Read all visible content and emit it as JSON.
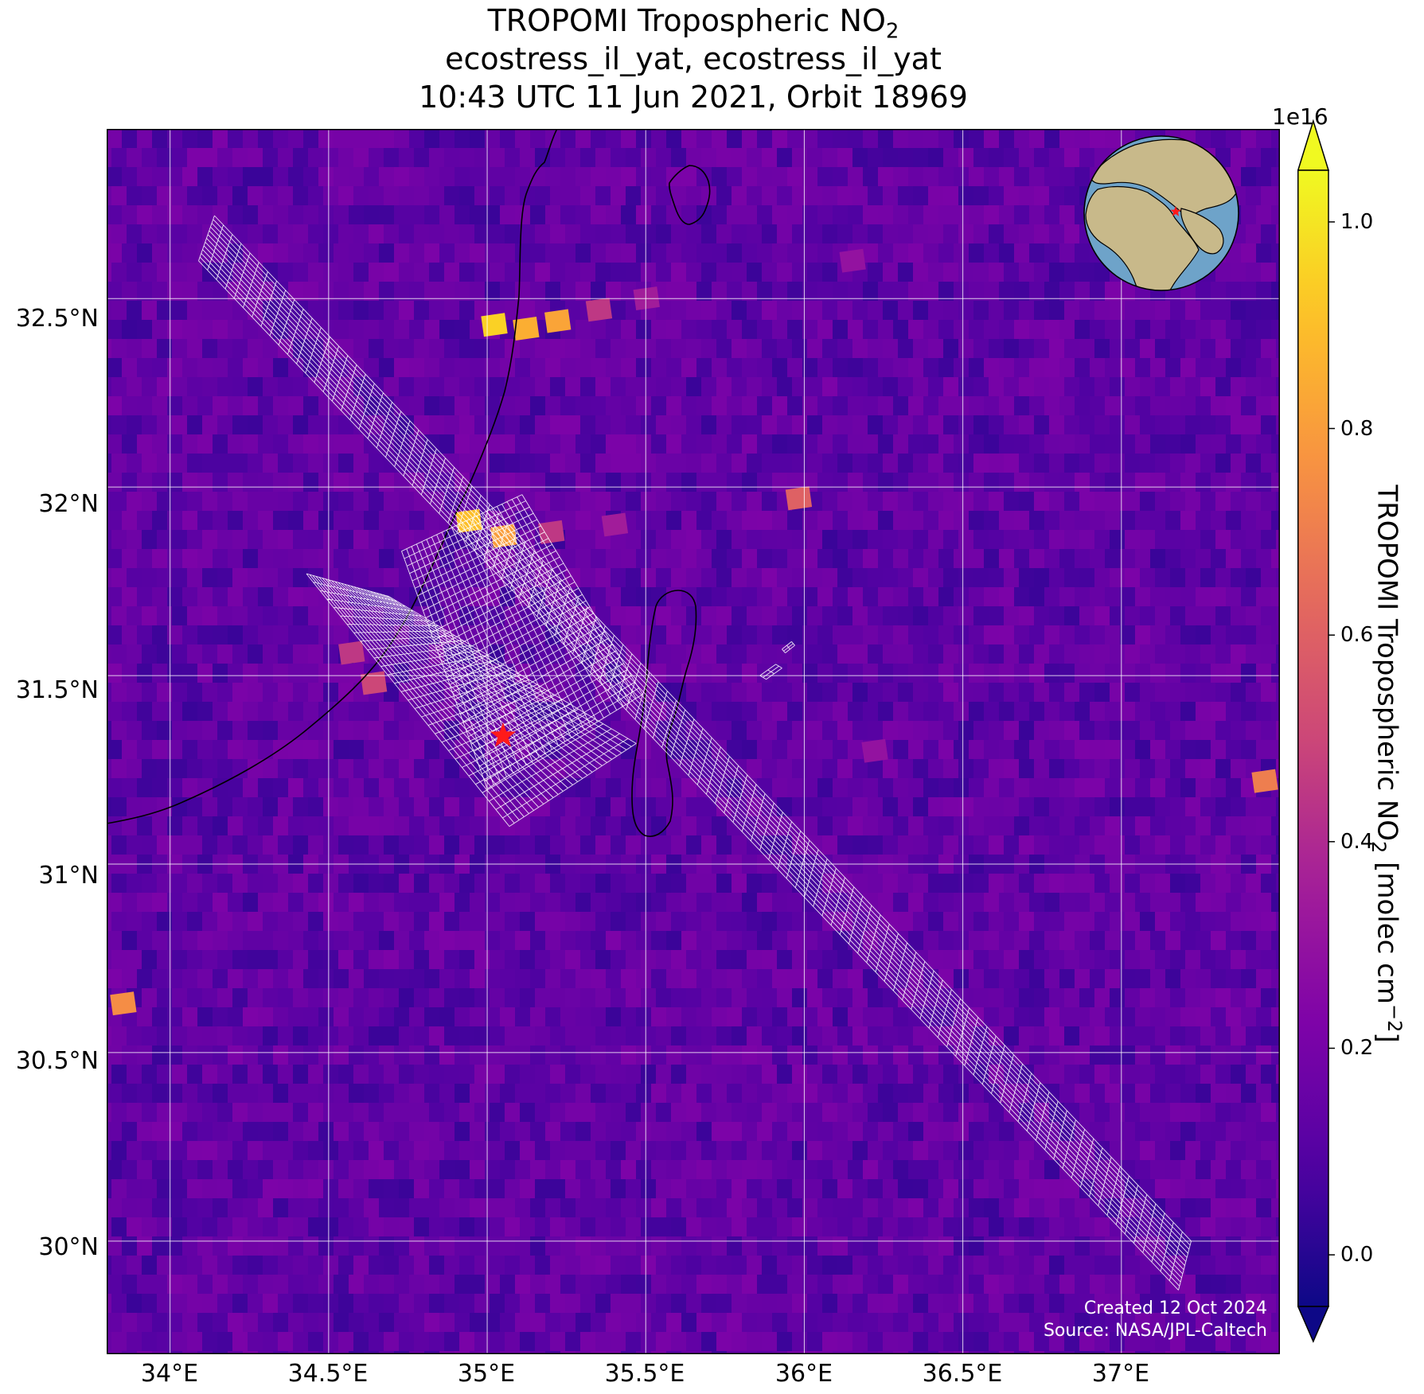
{
  "title": {
    "line1": "TROPOMI Tropospheric NO",
    "line1_sub": "2",
    "line2": "ecostress_il_yat, ecostress_il_yat",
    "line3": "10:43 UTC 11 Jun 2021, Orbit 18969"
  },
  "map": {
    "projection": "PlateCarree",
    "extent": {
      "lon_min": 33.8,
      "lon_max": 37.5,
      "lat_min": 29.7,
      "lat_max": 32.95
    },
    "background_color": "#3d0b9a",
    "gridline_color": "#ffffff",
    "coastline_color": "#000000",
    "lat_ticks": [
      {
        "value": 32.5,
        "label": "32.5°N"
      },
      {
        "value": 32.0,
        "label": "32°N"
      },
      {
        "value": 31.5,
        "label": "31.5°N"
      },
      {
        "value": 31.0,
        "label": "31°N"
      },
      {
        "value": 30.5,
        "label": "30.5°N"
      },
      {
        "value": 30.0,
        "label": "30°N"
      }
    ],
    "lon_ticks": [
      {
        "value": 34.0,
        "label": "34°E"
      },
      {
        "value": 34.5,
        "label": "34.5°E"
      },
      {
        "value": 35.0,
        "label": "35°E"
      },
      {
        "value": 35.5,
        "label": "35.5°E"
      },
      {
        "value": 36.0,
        "label": "36°E"
      },
      {
        "value": 36.5,
        "label": "36.5°E"
      },
      {
        "value": 37.0,
        "label": "37°E"
      }
    ],
    "target_marker": {
      "lon": 35.05,
      "lat": 31.34,
      "symbol": "star",
      "color": "#ff1a1a"
    },
    "hotspots": [
      {
        "lon": 35.02,
        "lat": 32.43,
        "value": 0.95
      },
      {
        "lon": 35.12,
        "lat": 32.42,
        "value": 0.85
      },
      {
        "lon": 35.22,
        "lat": 32.44,
        "value": 0.82
      },
      {
        "lon": 35.35,
        "lat": 32.47,
        "value": 0.45
      },
      {
        "lon": 35.5,
        "lat": 32.5,
        "value": 0.35
      },
      {
        "lon": 34.94,
        "lat": 31.91,
        "value": 0.9
      },
      {
        "lon": 35.05,
        "lat": 31.87,
        "value": 0.8
      },
      {
        "lon": 35.2,
        "lat": 31.88,
        "value": 0.45
      },
      {
        "lon": 35.4,
        "lat": 31.9,
        "value": 0.35
      },
      {
        "lon": 35.98,
        "lat": 31.97,
        "value": 0.6
      },
      {
        "lon": 34.64,
        "lat": 31.48,
        "value": 0.5
      },
      {
        "lon": 34.57,
        "lat": 31.56,
        "value": 0.45
      },
      {
        "lon": 33.85,
        "lat": 30.63,
        "value": 0.75
      },
      {
        "lon": 37.45,
        "lat": 31.22,
        "value": 0.7
      },
      {
        "lon": 36.22,
        "lat": 31.3,
        "value": 0.3
      },
      {
        "lon": 36.15,
        "lat": 32.6,
        "value": 0.3
      }
    ],
    "footprints": [
      {
        "name": "long-swath",
        "corners": [
          [
            34.09,
            32.6
          ],
          [
            34.14,
            32.72
          ],
          [
            37.22,
            30.0
          ],
          [
            37.18,
            29.87
          ]
        ],
        "rows": 110,
        "cols": 12
      },
      {
        "name": "scene-a",
        "corners": [
          [
            34.43,
            31.77
          ],
          [
            34.69,
            31.71
          ],
          [
            35.47,
            31.32
          ],
          [
            35.07,
            31.1
          ]
        ],
        "rows": 30,
        "cols": 26
      },
      {
        "name": "scene-b",
        "corners": [
          [
            34.73,
            31.83
          ],
          [
            35.11,
            31.98
          ],
          [
            35.49,
            31.45
          ],
          [
            35.0,
            31.2
          ]
        ],
        "rows": 32,
        "cols": 24
      },
      {
        "name": "fragment-1",
        "corners": [
          [
            35.86,
            31.5
          ],
          [
            35.91,
            31.53
          ],
          [
            35.93,
            31.52
          ],
          [
            35.88,
            31.49
          ]
        ],
        "rows": 2,
        "cols": 2
      },
      {
        "name": "fragment-2",
        "corners": [
          [
            35.93,
            31.57
          ],
          [
            35.96,
            31.59
          ],
          [
            35.97,
            31.58
          ],
          [
            35.94,
            31.56
          ]
        ],
        "rows": 2,
        "cols": 2
      }
    ],
    "credits": {
      "line1": "Created 12 Oct 2024",
      "line2": "Source: NASA/JPL-Caltech"
    },
    "inset_globe": {
      "symbol": "globe",
      "marker_color": "#ff1a1a",
      "ocean_color": "#6ea3c9",
      "land_color": "#c8b98a"
    }
  },
  "colorbar": {
    "colormap": "plasma",
    "min": -0.05,
    "max": 1.05,
    "extend": "both",
    "exponent_label": "1e16",
    "ticks": [
      {
        "value": 0.0,
        "label": "0.0"
      },
      {
        "value": 0.2,
        "label": "0.2"
      },
      {
        "value": 0.4,
        "label": "0.4"
      },
      {
        "value": 0.6,
        "label": "0.6"
      },
      {
        "value": 0.8,
        "label": "0.8"
      },
      {
        "value": 1.0,
        "label": "1.0"
      }
    ],
    "label": "TROPOMI Tropospheric NO",
    "label_sub": "2",
    "label_units": " [molec cm",
    "label_sup": "−2",
    "label_close": "]"
  }
}
